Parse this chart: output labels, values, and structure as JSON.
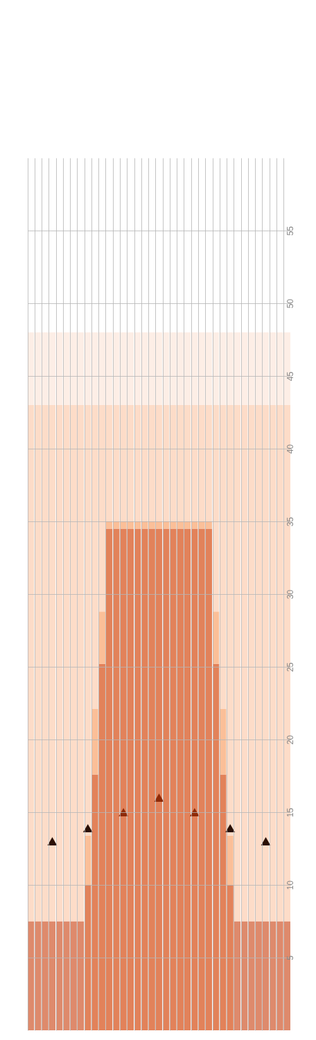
{
  "chart_data": {
    "type": "bar",
    "stacked": true,
    "ylim": [
      0,
      60
    ],
    "yticks": [
      5,
      10,
      15,
      20,
      25,
      30,
      35,
      40,
      45,
      50,
      55
    ],
    "grid": true,
    "tick_labels": "y",
    "categories": [
      null,
      null,
      null,
      null,
      null,
      null,
      null,
      null,
      null,
      null,
      null,
      null,
      null,
      null,
      null,
      null,
      null,
      null,
      null,
      null,
      null,
      null,
      null,
      null,
      null,
      null,
      null,
      null,
      null,
      null,
      null,
      null,
      null,
      null,
      null,
      null,
      null
    ],
    "series": [
      {
        "colors": [
          "#de8a6c",
          "#de8a6c",
          "#de8a6c",
          "#de8a6c",
          "#de8a6c",
          "#de8a6c",
          "#de8a6c",
          "#de8a6c",
          "#e2825a",
          "#e2825a",
          "#e2825a",
          "#e2825a",
          "#e2825a",
          "#e2825a",
          "#e2825a",
          "#e2825a",
          "#e2825a",
          "#e2825a",
          "#e2825a",
          "#e2825a",
          "#e2825a",
          "#e2825a",
          "#e2825a",
          "#e2825a",
          "#e2825a",
          "#e2825a",
          "#e2825a",
          "#e2825a",
          "#e2825a",
          "#de8a6c",
          "#de8a6c",
          "#de8a6c",
          "#de8a6c",
          "#de8a6c",
          "#de8a6c",
          "#de8a6c",
          "#de8a6c"
        ],
        "values": [
          7.5,
          7.5,
          7.5,
          7.5,
          7.5,
          7.5,
          7.5,
          7.5,
          10,
          17.6,
          25.2,
          34.5,
          34.5,
          34.5,
          34.5,
          34.5,
          34.5,
          34.5,
          34.5,
          34.5,
          34.5,
          34.5,
          34.5,
          34.5,
          34.5,
          34.5,
          25.2,
          17.6,
          10,
          7.5,
          7.5,
          7.5,
          7.5,
          7.5,
          7.5,
          7.5,
          7.5
        ]
      },
      {
        "color": "#fbbf98",
        "values": [
          0,
          0,
          0,
          0,
          0,
          0,
          0,
          0,
          3.4,
          4.5,
          3.6,
          0.5,
          0.5,
          0.5,
          0.5,
          0.5,
          0.5,
          0.5,
          0.5,
          0.5,
          0.5,
          0.5,
          0.5,
          0.5,
          0.5,
          0.5,
          3.6,
          4.5,
          3.4,
          0,
          0,
          0,
          0,
          0,
          0,
          0,
          0
        ]
      },
      {
        "color": "#fddcc8",
        "values": [
          35.5,
          35.5,
          35.5,
          35.5,
          35.5,
          35.5,
          35.5,
          35.5,
          29.6,
          20.9,
          14.2,
          8,
          8,
          8,
          8,
          8,
          8,
          8,
          8,
          8,
          8,
          8,
          8,
          8,
          8,
          8,
          14.2,
          20.9,
          29.6,
          35.5,
          35.5,
          35.5,
          35.5,
          35.5,
          35.5,
          35.5,
          35.5
        ]
      },
      {
        "color": "#fdeee6",
        "values": [
          5,
          5,
          5,
          5,
          5,
          5,
          5,
          5,
          5,
          5,
          5,
          5,
          5,
          5,
          5,
          5,
          5,
          5,
          5,
          5,
          5,
          5,
          5,
          5,
          5,
          5,
          5,
          5,
          5,
          5,
          5,
          5,
          5,
          5,
          5,
          5,
          5
        ]
      },
      {
        "type": "scatter",
        "marker": "triangle",
        "values": [
          null,
          null,
          null,
          13.0,
          null,
          null,
          null,
          null,
          13.9,
          null,
          null,
          null,
          null,
          15.0,
          null,
          null,
          null,
          null,
          16.0,
          null,
          null,
          null,
          null,
          15.0,
          null,
          null,
          null,
          null,
          13.9,
          null,
          null,
          null,
          null,
          13.0,
          null,
          null,
          null
        ],
        "colors": [
          null,
          null,
          null,
          "#2b1005",
          null,
          null,
          null,
          null,
          "#2b1005",
          null,
          null,
          null,
          null,
          "#8e2a08",
          null,
          null,
          null,
          null,
          "#8e2a08",
          null,
          null,
          null,
          null,
          "#8e2a08",
          null,
          null,
          null,
          null,
          "#2b1005",
          null,
          null,
          null,
          null,
          "#2b1005",
          null,
          null,
          null
        ]
      }
    ]
  }
}
